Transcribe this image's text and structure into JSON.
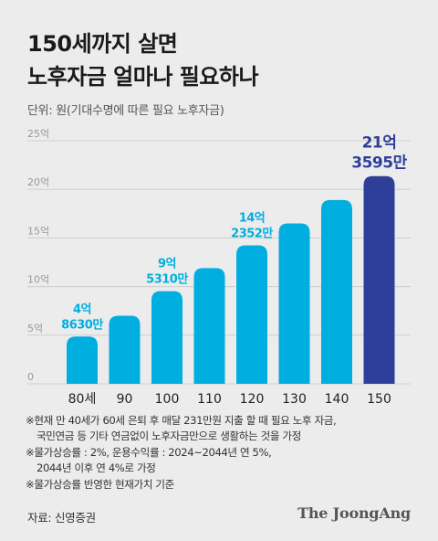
{
  "title_lines": [
    "150세까지 살면",
    "노후자금 얼마나 필요하나"
  ],
  "unit_note": "단위: 원(기대수명에 따른 필요 노후자금)",
  "chart_data": {
    "type": "bar",
    "categories": [
      "80세",
      "90",
      "100",
      "110",
      "120",
      "130",
      "140",
      "150"
    ],
    "values": [
      4.863,
      7.0,
      9.531,
      11.9,
      14.2352,
      16.5,
      18.9,
      21.3595
    ],
    "unit": "억 원",
    "ylim": [
      0,
      25
    ],
    "yticks": [
      0,
      5,
      10,
      15,
      20,
      25
    ],
    "ytick_labels": [
      "0",
      "5억",
      "10억",
      "15억",
      "20억",
      "25억"
    ],
    "grid": true,
    "data_labels": [
      {
        "index": 0,
        "lines": [
          "4억",
          "8630만"
        ]
      },
      {
        "index": 2,
        "lines": [
          "9억",
          "5310만"
        ]
      },
      {
        "index": 4,
        "lines": [
          "14억",
          "2352만"
        ]
      },
      {
        "index": 7,
        "lines": [
          "21억",
          "3595만"
        ]
      }
    ],
    "colors": {
      "bar": "#00aee0",
      "highlight": "#2e3f9a",
      "label": "#00aee0",
      "grid": "#cfcfcf",
      "axis_text": "#999999"
    },
    "highlight_index": 7
  },
  "notes": [
    {
      "text": "※현재 만 40세가 60세 은퇴 후 매달 231만원 지출 할 때 필요 노후 자금,",
      "indent": false
    },
    {
      "text": "국민연금 등 기타 연금없이 노후자금만으로 생활하는 것을 가정",
      "indent": true
    },
    {
      "text": "※물가상승률 : 2%, 운용수익률 : 2024~2044년 연 5%,",
      "indent": false
    },
    {
      "text": "2044년 이후 연 4%로 가정",
      "indent": true
    },
    {
      "text": "※물가상승률 반영한 현재가치 기준",
      "indent": false
    }
  ],
  "source": "자료: 신영증권",
  "logo": "The JoongAng"
}
